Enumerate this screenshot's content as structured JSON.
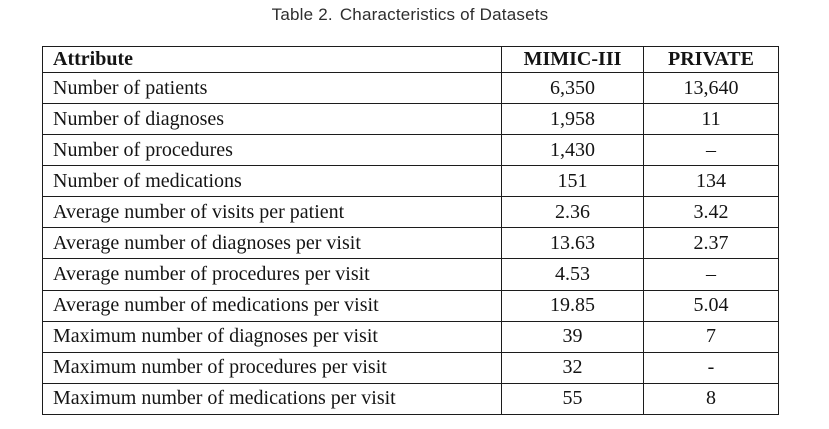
{
  "caption": {
    "label": "Table 2.",
    "text": "Characteristics of Datasets"
  },
  "table": {
    "columns": [
      "Attribute",
      "MIMIC-III",
      "PRIVATE"
    ],
    "rows": [
      {
        "attribute": "Number of patients",
        "mimic": "6,350",
        "private": "13,640"
      },
      {
        "attribute": "Number of diagnoses",
        "mimic": "1,958",
        "private": "11"
      },
      {
        "attribute": "Number of procedures",
        "mimic": "1,430",
        "private": "–"
      },
      {
        "attribute": "Number of medications",
        "mimic": "151",
        "private": "134"
      },
      {
        "attribute": "Average number of visits per patient",
        "mimic": "2.36",
        "private": "3.42"
      },
      {
        "attribute": "Average number of diagnoses per visit",
        "mimic": "13.63",
        "private": "2.37"
      },
      {
        "attribute": "Average number of procedures per visit",
        "mimic": "4.53",
        "private": "–"
      },
      {
        "attribute": "Average number of medications per visit",
        "mimic": "19.85",
        "private": "5.04"
      },
      {
        "attribute": "Maximum number of diagnoses per visit",
        "mimic": "39",
        "private": "7"
      },
      {
        "attribute": "Maximum number of procedures per visit",
        "mimic": "32",
        "private": "-"
      },
      {
        "attribute": "Maximum number of medications per visit",
        "mimic": "55",
        "private": "8"
      }
    ]
  },
  "colors": {
    "text": "#141414",
    "border": "#1c1c1c",
    "background": "#ffffff"
  }
}
